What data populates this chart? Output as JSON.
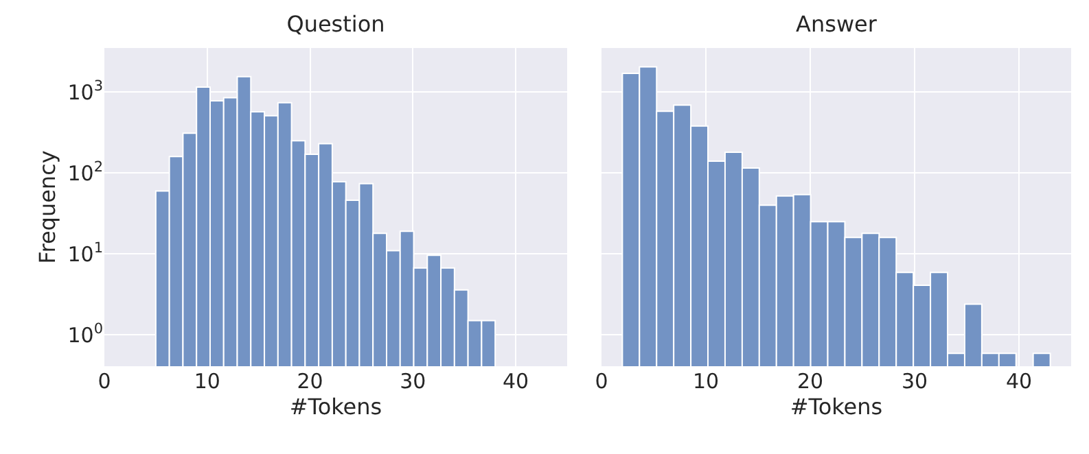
{
  "chart_data": [
    {
      "type": "histogram",
      "title": "Question",
      "xlabel": "#Tokens",
      "ylabel": "Frequency",
      "color": "#7393c4",
      "bins": [
        5,
        6.32,
        7.64,
        8.96,
        10.28,
        11.6,
        12.92,
        14.24,
        15.56,
        16.88,
        18.2,
        19.52,
        20.84,
        22.16,
        23.48,
        24.8,
        26.12,
        27.44,
        28.76,
        30.08,
        31.4,
        32.72,
        34.04,
        35.36,
        36.68,
        38
      ],
      "values": [
        60,
        160,
        310,
        1150,
        780,
        850,
        1550,
        570,
        510,
        740,
        250,
        170,
        230,
        78,
        46,
        74,
        18,
        11,
        19,
        6.7,
        9.6,
        6.7,
        3.6,
        1.5,
        1.5
      ],
      "xlim": [
        0,
        45
      ],
      "xticks": [
        0,
        10,
        20,
        30,
        40
      ],
      "ylim": [
        0.41,
        3500
      ],
      "yticks": [
        {
          "value": 1,
          "label": "10$^{0}$"
        },
        {
          "value": 10,
          "label": "10$^{1}$"
        },
        {
          "value": 100,
          "label": "10$^{2}$"
        },
        {
          "value": 1000,
          "label": "10$^{3}$"
        }
      ],
      "log": "y",
      "grid": true
    },
    {
      "type": "histogram",
      "title": "Answer",
      "xlabel": "#Tokens",
      "color": "#7393c4",
      "bins": [
        2,
        3.64,
        5.28,
        6.92,
        8.56,
        10.2,
        11.84,
        13.48,
        15.12,
        16.76,
        18.4,
        20.04,
        21.68,
        23.32,
        24.96,
        26.6,
        28.24,
        29.88,
        31.52,
        33.16,
        34.8,
        36.44,
        38.08,
        39.72,
        41.36,
        43
      ],
      "values": [
        1700,
        2050,
        580,
        690,
        380,
        140,
        180,
        115,
        40,
        52,
        54,
        25,
        25,
        16,
        18,
        16,
        5.9,
        4.1,
        5.9,
        0.59,
        2.4,
        0.59,
        0.59,
        null,
        0.59
      ],
      "xlim": [
        0,
        45
      ],
      "xticks": [
        0,
        10,
        20,
        30,
        40
      ],
      "ylim": [
        0.41,
        3500
      ],
      "yticks": [
        {
          "value": 1,
          "label": null
        },
        {
          "value": 10,
          "label": null
        },
        {
          "value": 100,
          "label": null
        },
        {
          "value": 1000,
          "label": null
        }
      ],
      "log": "y",
      "grid": true,
      "tick_labels": "x"
    }
  ]
}
